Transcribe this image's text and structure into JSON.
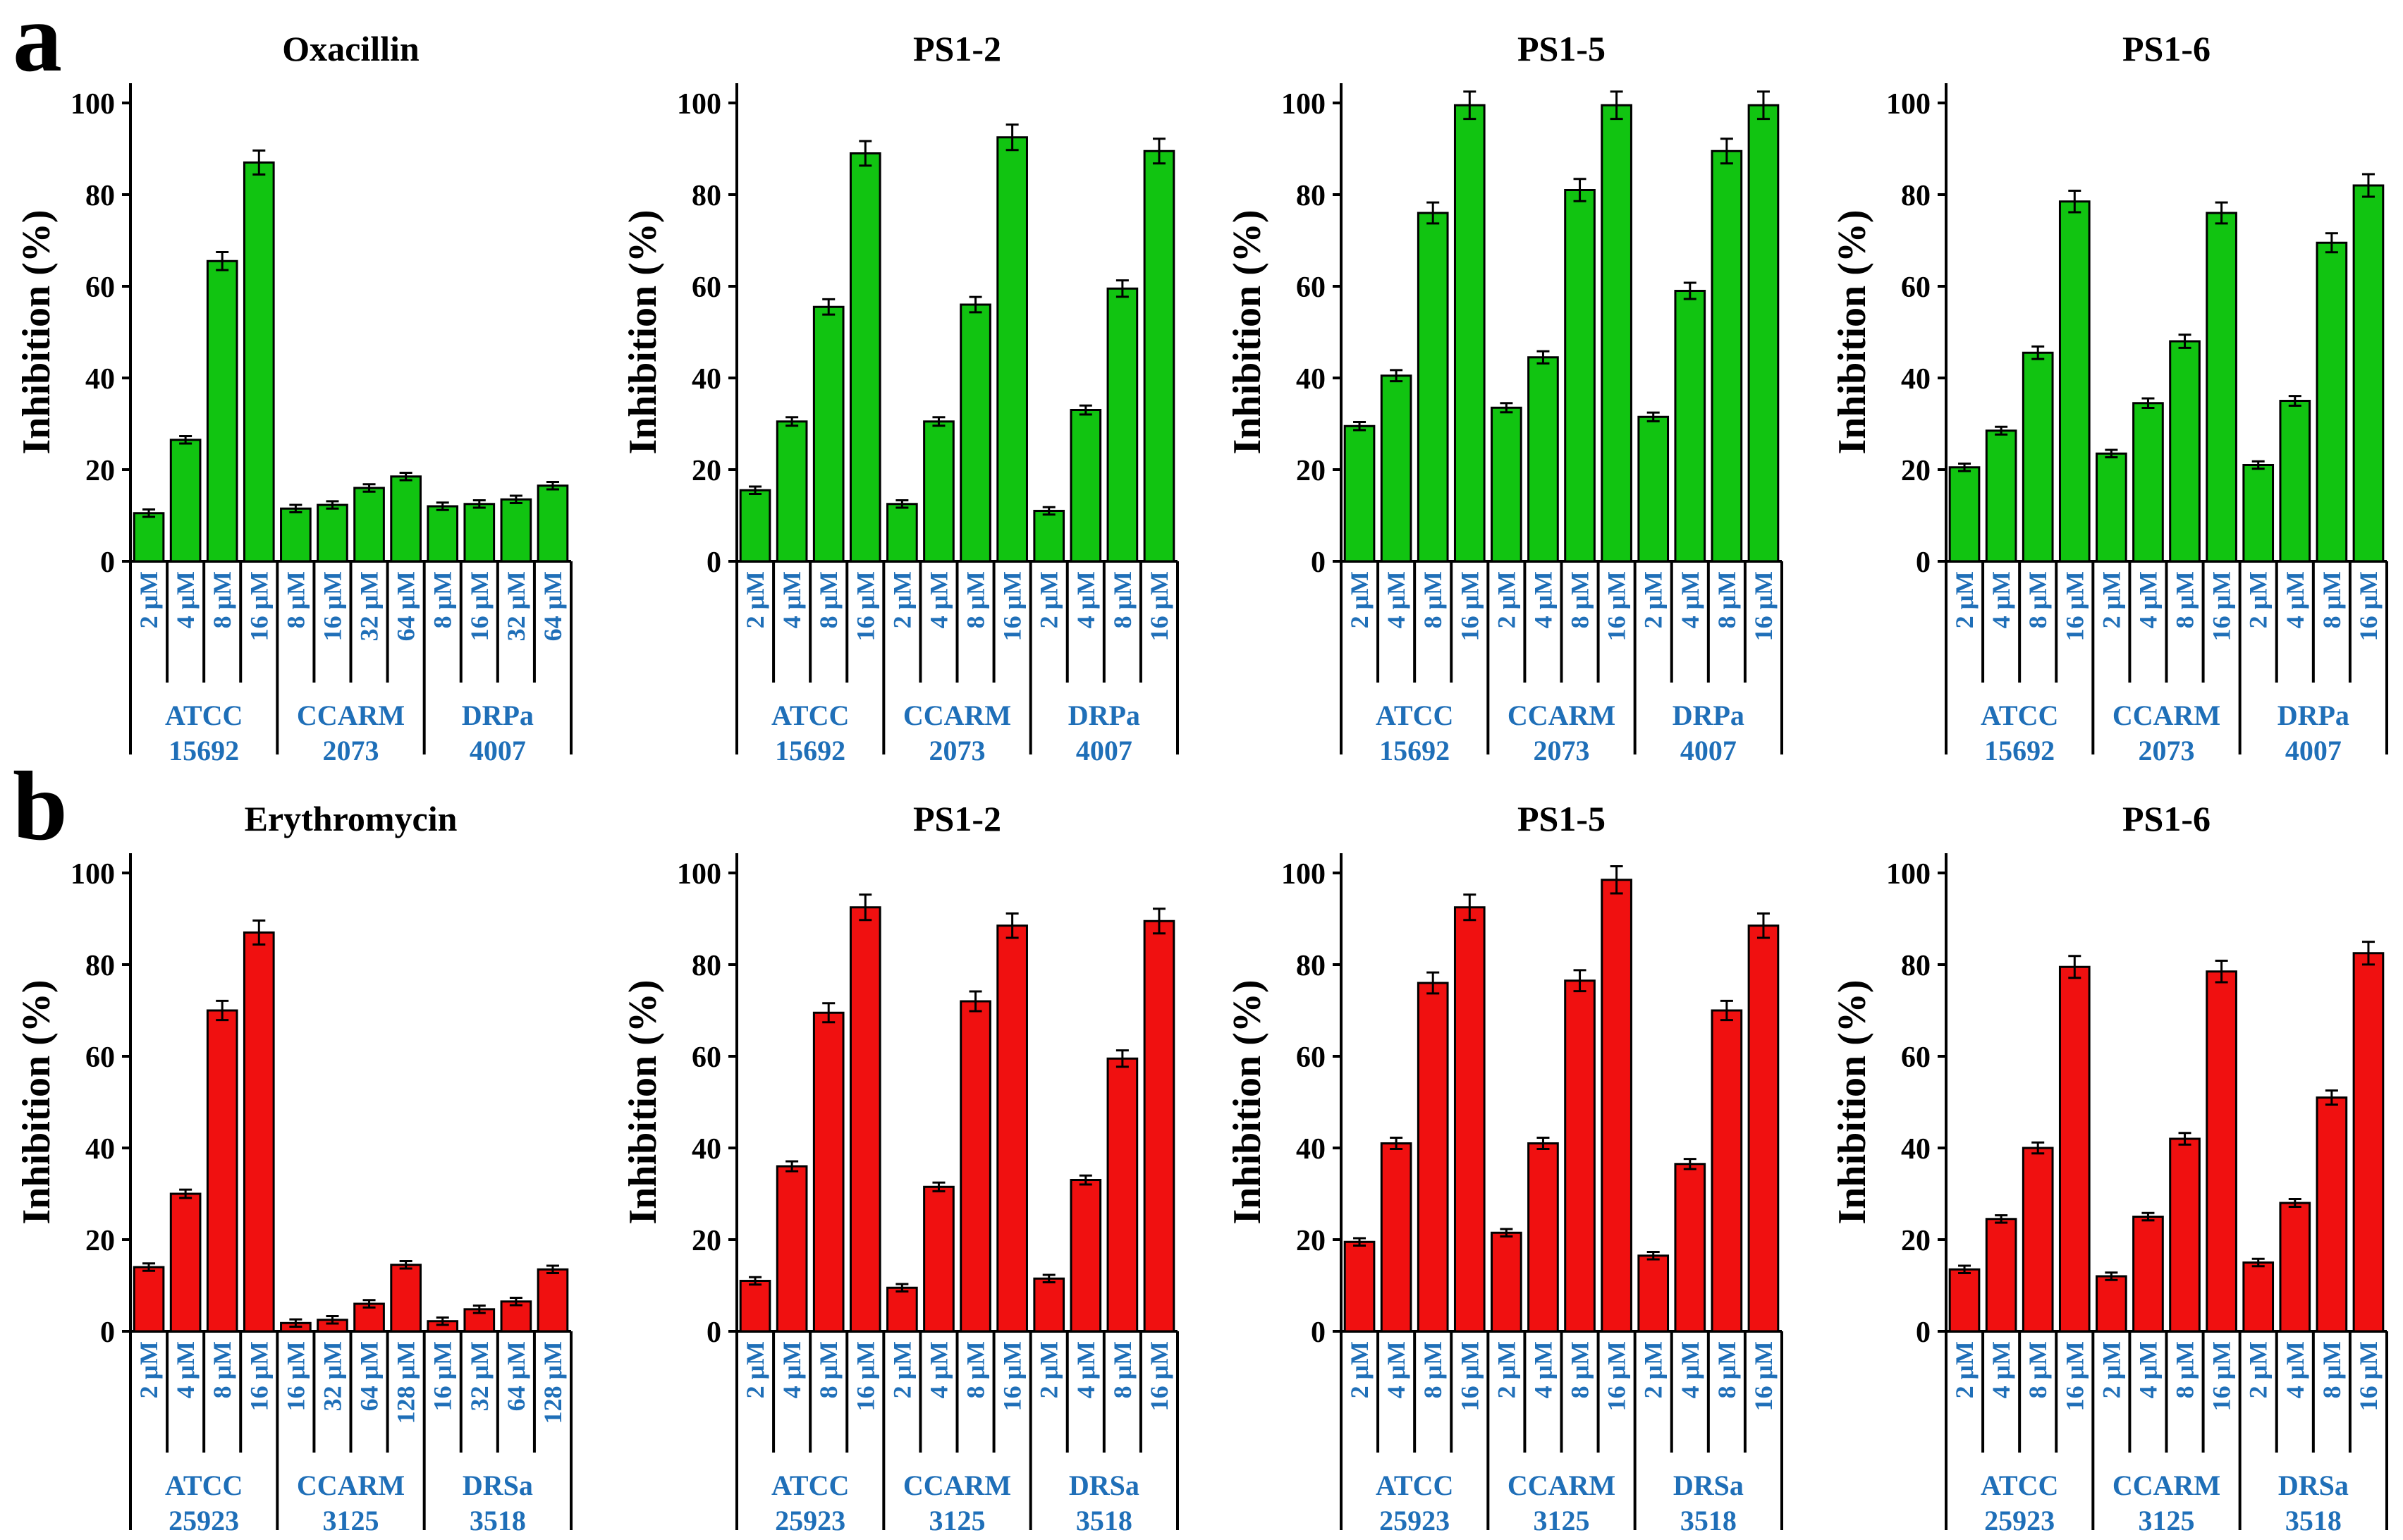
{
  "panels": [
    {
      "letter": "a"
    },
    {
      "letter": "b"
    }
  ],
  "chart_data": [
    {
      "panel": "a",
      "type": "bar",
      "title": "Oxacillin",
      "ylabel": "Inhibition (%)",
      "ylim": [
        0,
        100
      ],
      "yticks": [
        0,
        20,
        40,
        60,
        80,
        100
      ],
      "groups": [
        {
          "name": [
            "ATCC",
            "15692"
          ],
          "concentrations": [
            "2 μM",
            "4 μM",
            "8 μM",
            "16 μM"
          ],
          "values": [
            10.5,
            26.5,
            65.5,
            87
          ]
        },
        {
          "name": [
            "CCARM",
            "2073"
          ],
          "concentrations": [
            "8 μM",
            "16 μM",
            "32 μM",
            "64 μM"
          ],
          "values": [
            11.5,
            12.3,
            16,
            18.5
          ]
        },
        {
          "name": [
            "DRPa",
            "4007"
          ],
          "concentrations": [
            "8 μM",
            "16 μM",
            "32 μM",
            "64 μM"
          ],
          "values": [
            12,
            12.5,
            13.5,
            16.5
          ]
        }
      ]
    },
    {
      "panel": "a",
      "type": "bar",
      "title": "PS1-2",
      "ylabel": "Inhibition (%)",
      "ylim": [
        0,
        100
      ],
      "yticks": [
        0,
        20,
        40,
        60,
        80,
        100
      ],
      "groups": [
        {
          "name": [
            "ATCC",
            "15692"
          ],
          "concentrations": [
            "2 μM",
            "4 μM",
            "8 μM",
            "16 μM"
          ],
          "values": [
            15.5,
            30.5,
            55.5,
            89
          ]
        },
        {
          "name": [
            "CCARM",
            "2073"
          ],
          "concentrations": [
            "2 μM",
            "4 μM",
            "8 μM",
            "16 μM"
          ],
          "values": [
            12.5,
            30.5,
            56,
            92.5
          ]
        },
        {
          "name": [
            "DRPa",
            "4007"
          ],
          "concentrations": [
            "2 μM",
            "4 μM",
            "8 μM",
            "16 μM"
          ],
          "values": [
            11,
            33,
            59.5,
            89.5
          ]
        }
      ]
    },
    {
      "panel": "a",
      "type": "bar",
      "title": "PS1-5",
      "ylabel": "Inhibition (%)",
      "ylim": [
        0,
        100
      ],
      "yticks": [
        0,
        20,
        40,
        60,
        80,
        100
      ],
      "groups": [
        {
          "name": [
            "ATCC",
            "15692"
          ],
          "concentrations": [
            "2 μM",
            "4 μM",
            "8 μM",
            "16 μM"
          ],
          "values": [
            29.5,
            40.5,
            76,
            99.5
          ]
        },
        {
          "name": [
            "CCARM",
            "2073"
          ],
          "concentrations": [
            "2 μM",
            "4 μM",
            "8 μM",
            "16 μM"
          ],
          "values": [
            33.5,
            44.5,
            81,
            99.5
          ]
        },
        {
          "name": [
            "DRPa",
            "4007"
          ],
          "concentrations": [
            "2 μM",
            "4 μM",
            "8 μM",
            "16 μM"
          ],
          "values": [
            31.5,
            59,
            89.5,
            99.5
          ]
        }
      ]
    },
    {
      "panel": "a",
      "type": "bar",
      "title": "PS1-6",
      "ylabel": "Inhibition (%)",
      "ylim": [
        0,
        100
      ],
      "yticks": [
        0,
        20,
        40,
        60,
        80,
        100
      ],
      "groups": [
        {
          "name": [
            "ATCC",
            "15692"
          ],
          "concentrations": [
            "2 μM",
            "4 μM",
            "8 μM",
            "16 μM"
          ],
          "values": [
            20.5,
            28.5,
            45.5,
            78.5
          ]
        },
        {
          "name": [
            "CCARM",
            "2073"
          ],
          "concentrations": [
            "2 μM",
            "4 μM",
            "8 μM",
            "16 μM"
          ],
          "values": [
            23.5,
            34.5,
            48,
            76
          ]
        },
        {
          "name": [
            "DRPa",
            "4007"
          ],
          "concentrations": [
            "2 μM",
            "4 μM",
            "8 μM",
            "16 μM"
          ],
          "values": [
            21,
            35,
            69.5,
            82
          ]
        }
      ]
    },
    {
      "panel": "b",
      "type": "bar",
      "title": "Erythromycin",
      "ylabel": "Inhibition (%)",
      "ylim": [
        0,
        100
      ],
      "yticks": [
        0,
        20,
        40,
        60,
        80,
        100
      ],
      "groups": [
        {
          "name": [
            "ATCC",
            "25923"
          ],
          "concentrations": [
            "2 μM",
            "4 μM",
            "8 μM",
            "16 μM"
          ],
          "values": [
            14,
            30,
            70,
            87
          ]
        },
        {
          "name": [
            "CCARM",
            "3125"
          ],
          "concentrations": [
            "16 μM",
            "32 μM",
            "64 μM",
            "128 μM"
          ],
          "values": [
            1.8,
            2.5,
            6,
            14.5
          ]
        },
        {
          "name": [
            "DRSa",
            "3518"
          ],
          "concentrations": [
            "16 μM",
            "32 μM",
            "64 μM",
            "128 μM"
          ],
          "values": [
            2.2,
            4.8,
            6.5,
            13.5
          ]
        }
      ]
    },
    {
      "panel": "b",
      "type": "bar",
      "title": "PS1-2",
      "ylabel": "Inhibition (%)",
      "ylim": [
        0,
        100
      ],
      "yticks": [
        0,
        20,
        40,
        60,
        80,
        100
      ],
      "groups": [
        {
          "name": [
            "ATCC",
            "25923"
          ],
          "concentrations": [
            "2 μM",
            "4 μM",
            "8 μM",
            "16 μM"
          ],
          "values": [
            11,
            36,
            69.5,
            92.5
          ]
        },
        {
          "name": [
            "CCARM",
            "3125"
          ],
          "concentrations": [
            "2 μM",
            "4 μM",
            "8 μM",
            "16 μM"
          ],
          "values": [
            9.5,
            31.5,
            72,
            88.5
          ]
        },
        {
          "name": [
            "DRSa",
            "3518"
          ],
          "concentrations": [
            "2 μM",
            "4 μM",
            "8 μM",
            "16 μM"
          ],
          "values": [
            11.5,
            33,
            59.5,
            89.5
          ]
        }
      ]
    },
    {
      "panel": "b",
      "type": "bar",
      "title": "PS1-5",
      "ylabel": "Inhibition (%)",
      "ylim": [
        0,
        100
      ],
      "yticks": [
        0,
        20,
        40,
        60,
        80,
        100
      ],
      "groups": [
        {
          "name": [
            "ATCC",
            "25923"
          ],
          "concentrations": [
            "2 μM",
            "4 μM",
            "8 μM",
            "16 μM"
          ],
          "values": [
            19.5,
            41,
            76,
            92.5
          ]
        },
        {
          "name": [
            "CCARM",
            "3125"
          ],
          "concentrations": [
            "2 μM",
            "4 μM",
            "8 μM",
            "16 μM"
          ],
          "values": [
            21.5,
            41,
            76.5,
            98.5
          ]
        },
        {
          "name": [
            "DRSa",
            "3518"
          ],
          "concentrations": [
            "2 μM",
            "4 μM",
            "8 μM",
            "16 μM"
          ],
          "values": [
            16.5,
            36.5,
            70,
            88.5
          ]
        }
      ]
    },
    {
      "panel": "b",
      "type": "bar",
      "title": "PS1-6",
      "ylabel": "Inhibition (%)",
      "ylim": [
        0,
        100
      ],
      "yticks": [
        0,
        20,
        40,
        60,
        80,
        100
      ],
      "groups": [
        {
          "name": [
            "ATCC",
            "25923"
          ],
          "concentrations": [
            "2 μM",
            "4 μM",
            "8 μM",
            "16 μM"
          ],
          "values": [
            13.5,
            24.5,
            40,
            79.5
          ]
        },
        {
          "name": [
            "CCARM",
            "3125"
          ],
          "concentrations": [
            "2 μM",
            "4 μM",
            "8 μM",
            "16 μM"
          ],
          "values": [
            12,
            25,
            42,
            78.5
          ]
        },
        {
          "name": [
            "DRSa",
            "3518"
          ],
          "concentrations": [
            "2 μM",
            "4 μM",
            "8 μM",
            "16 μM"
          ],
          "values": [
            15,
            28,
            51,
            82.5
          ]
        }
      ]
    }
  ],
  "colors": {
    "panel_a_bars": "#11c411",
    "panel_b_bars": "#f01010",
    "label_text": "#1f6fb8",
    "axis": "#000000"
  }
}
